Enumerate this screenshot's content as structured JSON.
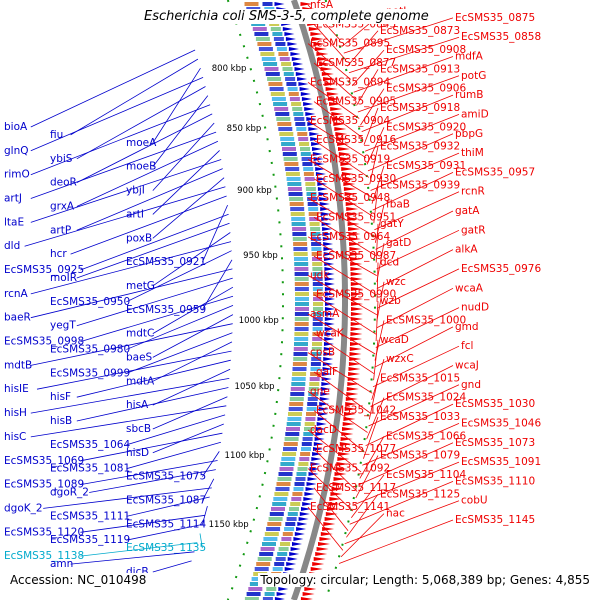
{
  "title": "Escherichia coli SMS-3-5, complete genome",
  "footer": {
    "accession": "Accession: NC_010498",
    "topology": "Topology: circular; Length: 5,068,389 bp; Genes: 4,855"
  },
  "colors": {
    "forward_strand": "#ee0000",
    "reverse_strand": "#0000cc",
    "highlight": "#00aacc",
    "backbone": "#888888",
    "gc_marker": "#119911"
  },
  "scale_labels": [
    "800 kbp",
    "850 kbp",
    "900 kbp",
    "950 kbp",
    "1000 kbp",
    "1050 kbp",
    "1100 kbp",
    "1150 kbp"
  ],
  "right_genes": [
    "nfsA",
    "potI",
    "EcSMS35_0875",
    "EcSMS35_0845",
    "EcSMS35_0873",
    "EcSMS35_0858",
    "EcSMS35_0895",
    "EcSMS35_0908",
    "mdfA",
    "EcSMS35_0877",
    "EcSMS35_0913",
    "potG",
    "EcSMS35_0894",
    "EcSMS35_0906",
    "rumB",
    "EcSMS35_0905",
    "EcSMS35_0918",
    "amiD",
    "EcSMS35_0904",
    "EcSMS35_0920",
    "pbpG",
    "EcSMS35_0916",
    "EcSMS35_0932",
    "thiM",
    "EcSMS35_0919",
    "EcSMS35_0931",
    "EcSMS35_0957",
    "EcSMS35_0930",
    "EcSMS35_0939",
    "rcnR",
    "EcSMS35_0948",
    "fbaB",
    "gatA",
    "EcSMS35_0951",
    "gatY",
    "gatR",
    "EcSMS35_0964",
    "gatD",
    "alkA",
    "EcSMS35_0987",
    "dcd",
    "EcSMS35_0976",
    "udk",
    "wzc",
    "wcaA",
    "EcSMS35_0990",
    "wzb",
    "nudD",
    "asmA",
    "EcSMS35_1000",
    "gmd",
    "wcaK",
    "wcaD",
    "fcl",
    "cpsB",
    "wzxC",
    "wcaJ",
    "galF",
    "EcSMS35_1015",
    "gnd",
    "gne",
    "EcSMS35_1024",
    "EcSMS35_1030",
    "EcSMS35_1042",
    "EcSMS35_1033",
    "EcSMS35_1046",
    "dacD",
    "EcSMS35_1066",
    "EcSMS35_1073",
    "EcSMS35_1077",
    "EcSMS35_1079",
    "EcSMS35_1091",
    "EcSMS35_1092",
    "EcSMS35_1104",
    "EcSMS35_1110",
    "EcSMS35_1117",
    "EcSMS35_1125",
    "cobU",
    "EcSMS35_1141",
    "nac",
    "EcSMS35_1145"
  ],
  "left_genes": [
    "bioA",
    "fiu",
    "moeA",
    "glnQ",
    "ybiS",
    "moeB",
    "rimO",
    "deoR",
    "ybjI",
    "artJ",
    "grxA",
    "artI",
    "ltaE",
    "artP",
    "poxB",
    "dld",
    "hcr",
    "EcSMS35_0921",
    "EcSMS35_0925",
    "moIR",
    "metG",
    "rcnA",
    "EcSMS35_0950",
    "EcSMS35_0959",
    "baeR",
    "yegT",
    "mdtC",
    "EcSMS35_0998",
    "EcSMS35_0980",
    "baeS",
    "mdtB",
    "EcSMS35_0999",
    "mdtA",
    "hisIE",
    "hisF",
    "hisA",
    "hisH",
    "hisB",
    "sbcB",
    "hisC",
    "EcSMS35_1064",
    "hisD",
    "EcSMS35_1069",
    "EcSMS35_1081",
    "EcSMS35_1075",
    "EcSMS35_1089",
    "dgoR_2",
    "EcSMS35_1087",
    "dgoK_2",
    "EcSMS35_1111",
    "EcSMS35_1114",
    "EcSMS35_1120",
    "EcSMS35_1119",
    "EcSMS35_1135",
    "EcSMS35_1138",
    "amn",
    "dicB"
  ]
}
